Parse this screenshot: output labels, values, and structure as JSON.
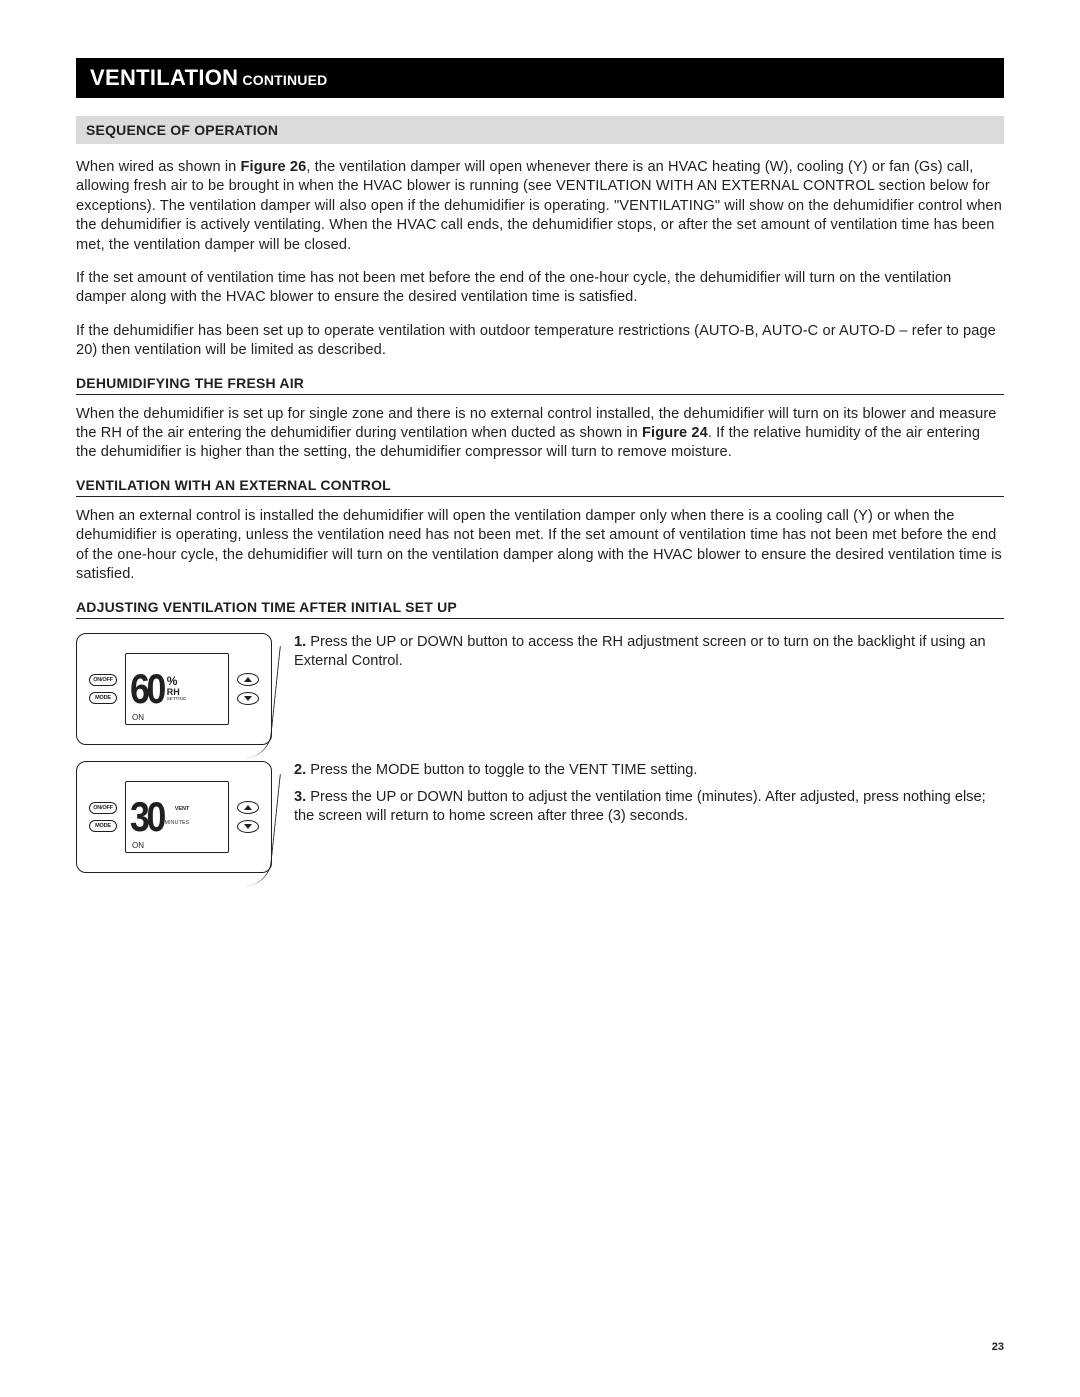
{
  "banner": {
    "main": "VENTILATION",
    "sub": " CONTINUED"
  },
  "sections": {
    "seq_title": "SEQUENCE OF OPERATION",
    "seq_p1a": "When wired as shown in ",
    "seq_p1_bold": "Figure 26",
    "seq_p1b": ", the ventilation damper will open whenever there is an HVAC heating (W), cooling (Y) or fan (Gs) call, allowing fresh air to be brought in when the HVAC blower is running (see VENTILATION WITH AN EXTERNAL CONTROL section below for exceptions). The ventilation damper will also open if the dehumidifier is operating. \"VENTILATING\" will show on the dehumidifier control when the dehumidifier is actively ventilating. When the HVAC call ends, the dehumidifier stops, or after the set amount of ventilation time has been met, the ventilation damper will be closed.",
    "seq_p2": "If the set amount of ventilation time has not been met before the end of the one-hour cycle, the dehumidifier will turn on the ventilation damper along with the HVAC blower to ensure the desired ventilation time is satisfied.",
    "seq_p3": "If the dehumidifier has been set up to operate ventilation with outdoor temperature restrictions (AUTO-B, AUTO-C or AUTO-D – refer to page 20) then ventilation will be limited as described.",
    "dehum_title": "DEHUMIDIFYING THE FRESH AIR",
    "dehum_p1a": "When the dehumidifier is set up for single zone and there is no external control installed, the dehumidifier will turn on its blower and measure the RH of the air entering the dehumidifier during ventilation when ducted as shown in ",
    "dehum_p1_bold": "Figure 24",
    "dehum_p1b": ". If the relative humidity of the air entering the dehumidifier is higher than the setting, the dehumidifier compressor will turn to remove moisture.",
    "ext_title": "VENTILATION WITH AN EXTERNAL CONTROL",
    "ext_p1": "When an external control is installed the dehumidifier will open the ventilation damper only when there is a cooling call (Y) or when the dehumidifier is operating, unless the ventilation need has not been met. If the set amount of ventilation time has not been met before the end of the one-hour cycle, the dehumidifier will turn on the ventilation damper along with the HVAC blower to ensure the desired ventilation time is satisfied.",
    "adj_title": "ADJUSTING VENTILATION TIME AFTER INITIAL SET UP"
  },
  "device": {
    "btn_onoff": "ON/OFF",
    "btn_mode": "MODE",
    "on": "ON",
    "d1_value": "60",
    "d1_pct": "%",
    "d1_rh": "RH",
    "d1_setting": "SETTING",
    "d2_value": "30",
    "d2_vent": "VENT",
    "d2_minutes": "MINUTES"
  },
  "steps": {
    "s1_num": "1.",
    "s1_text": " Press the UP or DOWN button to access the RH adjustment screen or to turn on the backlight if using an External Control.",
    "s2_num": "2.",
    "s2_text": " Press the MODE button to toggle to the VENT TIME setting.",
    "s3_num": "3.",
    "s3_text": " Press the UP or DOWN button to adjust the ventilation time (minutes). After adjusted, press nothing else; the screen will return to home screen after three (3) seconds."
  },
  "page_number": "23"
}
